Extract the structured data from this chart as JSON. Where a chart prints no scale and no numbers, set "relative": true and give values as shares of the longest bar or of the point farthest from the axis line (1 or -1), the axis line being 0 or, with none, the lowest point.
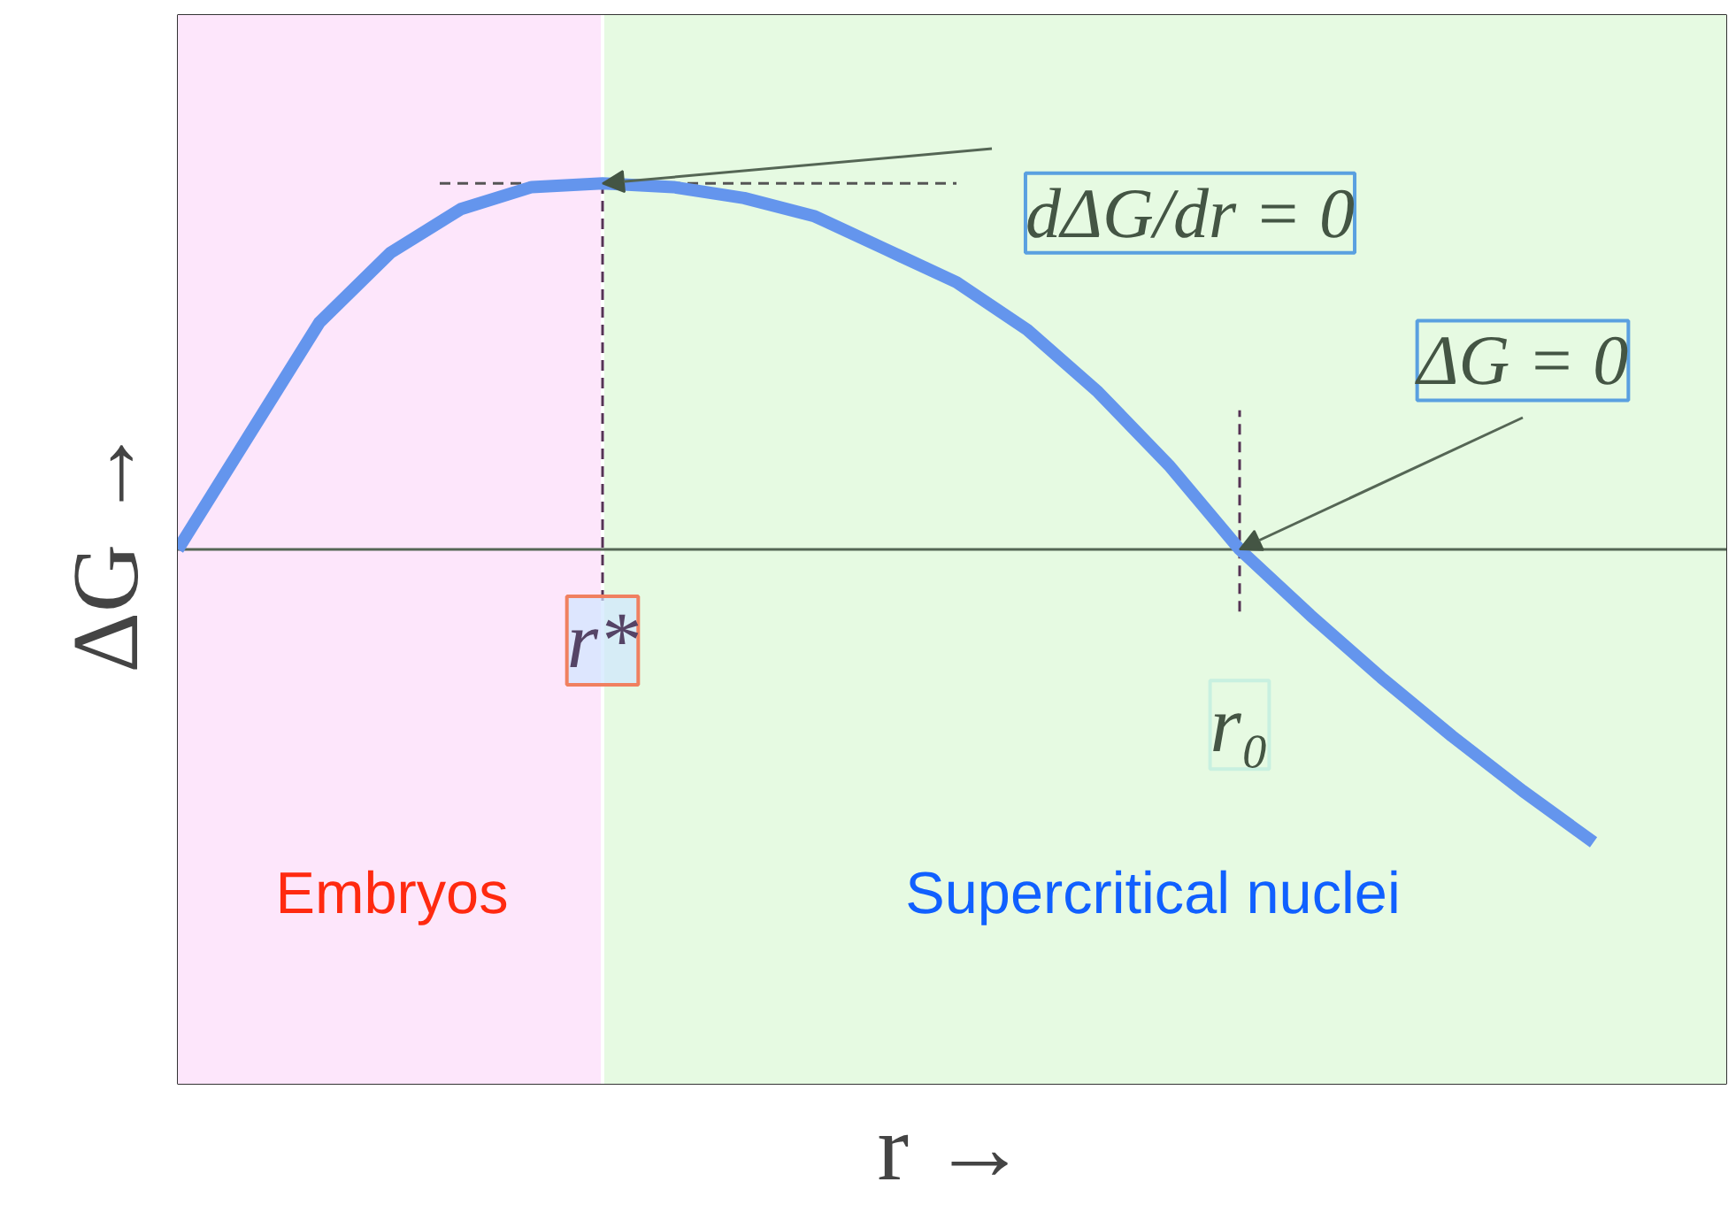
{
  "chart_data": {
    "type": "line",
    "relative": true,
    "xlabel": "r →",
    "ylabel": "ΔG →",
    "tick_labels": false,
    "marker": "none",
    "line_style": "solid",
    "categories": [
      null,
      null,
      null,
      null,
      null,
      null,
      null,
      null,
      null,
      null,
      null,
      null,
      null,
      null,
      null,
      null,
      null,
      null,
      null,
      null,
      null
    ],
    "series": [
      {
        "color": "#6495ed",
        "values": [
          0,
          0.31,
          0.62,
          0.81,
          0.93,
          0.99,
          1.0,
          0.99,
          0.96,
          0.91,
          0.82,
          0.73,
          0.6,
          0.43,
          0.23,
          0,
          -0.18,
          -0.35,
          -0.51,
          -0.66,
          -0.8
        ]
      }
    ],
    "ref_lines": [
      {
        "axis": "y",
        "value": 1,
        "line_style": "dashed"
      }
    ],
    "annotations": [
      "r*",
      "r₀",
      "dΔG/dr = 0",
      "ΔG = 0",
      "Embryos",
      "Supercritical nuclei"
    ]
  }
}
